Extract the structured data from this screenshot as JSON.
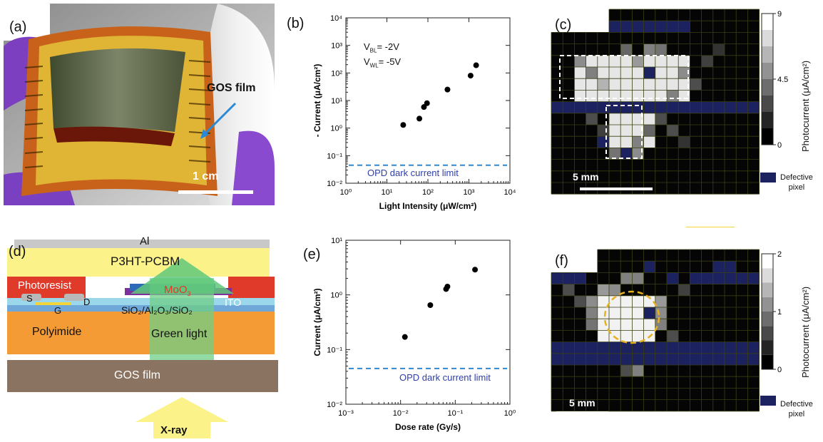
{
  "panels": {
    "a": {
      "label": "(a)",
      "film_label": "GOS film",
      "scalebar": "1 cm"
    },
    "b": {
      "label": "(b)",
      "vbl": "V",
      "vbl_sub": "BL",
      "vbl_val": "= -2V",
      "vwl": "V",
      "vwl_sub": "WL",
      "vwl_val": "= -5V",
      "dark_label": "OPD dark current limit"
    },
    "c": {
      "label": "(c)",
      "colorbar_title": "Photocurrent (μA/cm²)",
      "ticks": [
        "9",
        "4.5",
        "0"
      ],
      "scalebar": "5 mm",
      "defective": [
        "Defective",
        "pixel"
      ]
    },
    "d": {
      "label": "(d)",
      "layers": {
        "al": "Al",
        "p3ht": "P3HT-PCBM",
        "photoresist": "Photoresist",
        "moo3": "MoO",
        "moo3_sub": "3",
        "s": "S",
        "g": "G",
        "d": "D",
        "ito": "ITO",
        "dielectric": "SiO₂/Al₂O₃/SiO₂",
        "polyimide": "Polyimide",
        "green": "Green light",
        "gos": "GOS film",
        "xray": "X-ray"
      }
    },
    "e": {
      "label": "(e)",
      "dark_label": "OPD dark current limit"
    },
    "f": {
      "label": "(f)",
      "colorbar_title": "Photocurrent (μA/cm²)",
      "ticks": [
        "2",
        "1",
        "0"
      ],
      "scalebar": "5 mm",
      "defective": [
        "Defective",
        "pixel"
      ]
    }
  },
  "chart_data": [
    {
      "type": "scatter",
      "panel": "b",
      "xlabel": "Light Intensity (μW/cm²)",
      "ylabel": "- Current (μA/cm²)",
      "xscale": "log",
      "yscale": "log",
      "xlim": [
        1,
        10000
      ],
      "ylim": [
        0.01,
        10000
      ],
      "xticks": [
        "10⁰",
        "10¹",
        "10²",
        "10³",
        "10⁴"
      ],
      "yticks": [
        "10⁻²",
        "10⁻¹",
        "10⁰",
        "10¹",
        "10²",
        "10³",
        "10⁴"
      ],
      "points": [
        [
          25,
          1.3
        ],
        [
          62,
          2.2
        ],
        [
          80,
          5.8
        ],
        [
          95,
          8.0
        ],
        [
          300,
          25
        ],
        [
          1100,
          80
        ],
        [
          1500,
          190
        ]
      ],
      "dark_current": 0.045
    },
    {
      "type": "scatter",
      "panel": "e",
      "xlabel": "Dose rate (Gy/s)",
      "ylabel": "Current (μA/cm²)",
      "xscale": "log",
      "yscale": "log",
      "xlim": [
        0.001,
        1
      ],
      "ylim": [
        0.01,
        10
      ],
      "xticks": [
        "10⁻³",
        "10⁻²",
        "10⁻¹",
        "10⁰"
      ],
      "yticks": [
        "10⁻²",
        "10⁻¹",
        "10⁰",
        "10¹"
      ],
      "points": [
        [
          0.012,
          0.17
        ],
        [
          0.035,
          0.65
        ],
        [
          0.068,
          1.28
        ],
        [
          0.072,
          1.42
        ],
        [
          0.23,
          2.9
        ]
      ],
      "dark_current": 0.045
    }
  ]
}
